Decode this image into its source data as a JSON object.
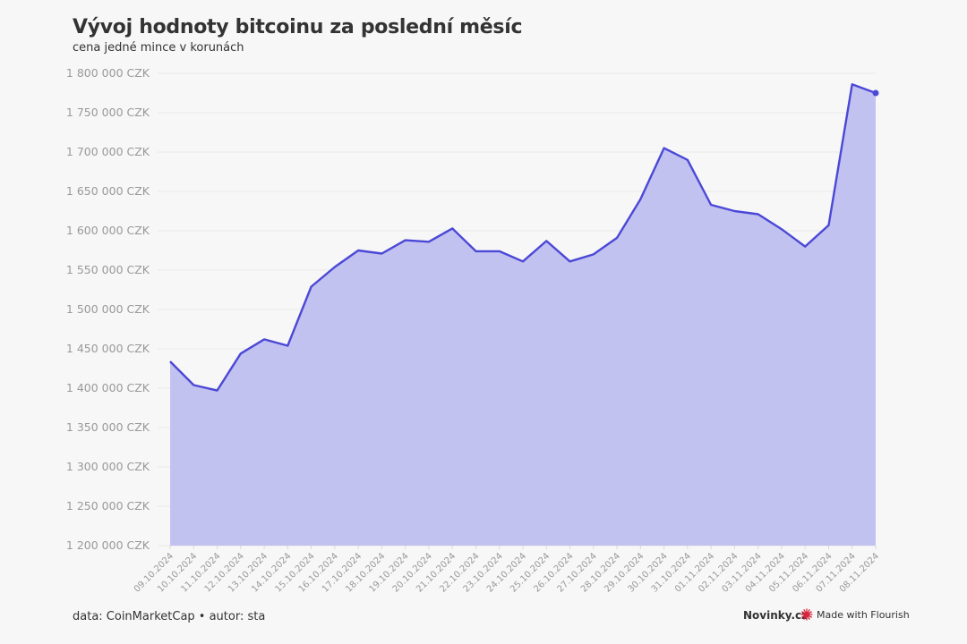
{
  "title": "Vývoj hodnoty bitcoinu za poslední měsíc",
  "subtitle": "cena jedné mince v korunách",
  "footer": {
    "source": "data: CoinMarketCap • autor: sta",
    "brand": "Novinky.cz",
    "made_with": "Made with Flourish"
  },
  "colors": {
    "line": "#4b48d6",
    "area": "#bfbff0",
    "grid": "#e8e8e8",
    "flourish_icon": "#d7263d"
  },
  "chart_data": {
    "type": "area",
    "ylim": [
      1200000,
      1800000
    ],
    "yticks": [
      1200000,
      1250000,
      1300000,
      1350000,
      1400000,
      1450000,
      1500000,
      1550000,
      1600000,
      1650000,
      1700000,
      1750000,
      1800000
    ],
    "ytick_labels": [
      "1 200 000 CZK",
      "1 250 000 CZK",
      "1 300 000 CZK",
      "1 350 000 CZK",
      "1 400 000 CZK",
      "1 450 000 CZK",
      "1 500 000 CZK",
      "1 550 000 CZK",
      "1 600 000 CZK",
      "1 650 000 CZK",
      "1 700 000 CZK",
      "1 750 000 CZK",
      "1 800 000 CZK"
    ],
    "x": [
      "09.10.2024",
      "10.10.2024",
      "11.10.2024",
      "12.10.2024",
      "13.10.2024",
      "14.10.2024",
      "15.10.2024",
      "16.10.2024",
      "17.10.2024",
      "18.10.2024",
      "19.10.2024",
      "20.10.2024",
      "21.10.2024",
      "22.10.2024",
      "23.10.2024",
      "24.10.2024",
      "25.10.2024",
      "26.10.2024",
      "27.10.2024",
      "28.10.2024",
      "29.10.2024",
      "30.10.2024",
      "31.10.2024",
      "01.11.2024",
      "02.11.2024",
      "03.11.2024",
      "04.11.2024",
      "05.11.2024",
      "06.11.2024",
      "07.11.2024",
      "08.11.2024"
    ],
    "values": [
      1434000,
      1404000,
      1397000,
      1444000,
      1462000,
      1454000,
      1529000,
      1554000,
      1575000,
      1571000,
      1588000,
      1586000,
      1603000,
      1574000,
      1574000,
      1561000,
      1587000,
      1561000,
      1570000,
      1591000,
      1640000,
      1705000,
      1690000,
      1633000,
      1625000,
      1621000,
      1602000,
      1580000,
      1607000,
      1786000,
      1775000
    ],
    "grid": true,
    "legend": "none"
  }
}
